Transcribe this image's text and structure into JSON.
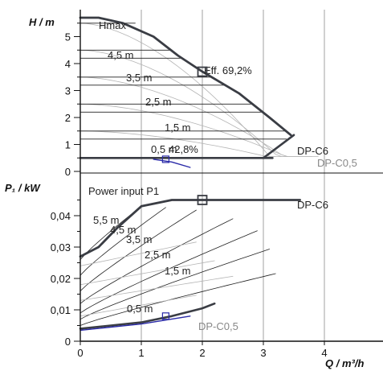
{
  "chart_data": [
    {
      "type": "line",
      "title": "",
      "xlabel": "Q / m³/h",
      "ylabel": "H / m",
      "xlim": [
        0,
        4.8
      ],
      "ylim": [
        0,
        6.2
      ],
      "xticks": [
        "0",
        "1",
        "2",
        "3",
        "4"
      ],
      "yticks": [
        "0",
        "1",
        "2",
        "3",
        "4",
        "5"
      ],
      "grid": "vertical",
      "series": [
        {
          "name": "DP-C6",
          "x": [
            0,
            0.3,
            0.7,
            1.2,
            1.6,
            2.0,
            2.6,
            3.1,
            3.45
          ],
          "y": [
            5.7,
            5.7,
            5.5,
            5.0,
            4.3,
            3.7,
            2.9,
            2.0,
            1.35
          ]
        },
        {
          "name": "DP-C0,5",
          "x": [
            0,
            1.0,
            2.0,
            3.0,
            3.15
          ],
          "y": [
            0.5,
            0.5,
            0.5,
            0.5,
            0.5
          ]
        },
        {
          "name": "",
          "x": [
            3.0,
            3.5
          ],
          "y": [
            0.5,
            1.35
          ]
        }
      ],
      "level_lines_m": [
        5.5,
        4.5,
        4.2,
        3.5,
        3.2,
        2.5,
        2.2,
        1.5,
        1.2,
        0.5
      ],
      "level_labels": [
        "Hmax",
        "4,5 m",
        "3,5 m",
        "2,5 m",
        "1,5 m",
        "0,5 m"
      ],
      "annotations": [
        "Eff. 69,2%",
        "42,8%",
        "DP-C6",
        "DP-C0,5"
      ],
      "markers": [
        {
          "x": 2.0,
          "y": 3.7
        },
        {
          "x": 1.4,
          "y": 0.45
        }
      ]
    },
    {
      "type": "line",
      "title": "",
      "xlabel": "Q / m³/h",
      "ylabel": "P₁ / kW",
      "xlim": [
        0,
        4.8
      ],
      "ylim": [
        0,
        0.048
      ],
      "xticks": [
        "0",
        "1",
        "2",
        "3",
        "4"
      ],
      "yticks": [
        "0",
        "0,01",
        "0,02",
        "0,03",
        "0,04"
      ],
      "grid": "vertical",
      "series": [
        {
          "name": "DP-C6",
          "x": [
            0,
            0.3,
            0.6,
            1.0,
            1.5,
            2.0,
            2.5,
            3.0,
            3.6
          ],
          "y": [
            0.027,
            0.03,
            0.036,
            0.043,
            0.045,
            0.045,
            0.045,
            0.045,
            0.045
          ]
        },
        {
          "name": "DP-C0,5",
          "x": [
            0,
            0.5,
            1.0,
            1.5,
            2.0,
            2.2
          ],
          "y": [
            0.004,
            0.005,
            0.006,
            0.008,
            0.0105,
            0.012
          ]
        }
      ],
      "level_labels": [
        "Power input P1",
        "5,5 m",
        "4,5 m",
        "3,5 m",
        "2,5 m",
        "1,5 m",
        "0,5 m"
      ],
      "annotations": [
        "DP-C6",
        "DP-C0,5"
      ],
      "markers": [
        {
          "x": 2.0,
          "y": 0.045
        },
        {
          "x": 1.4,
          "y": 0.008
        }
      ]
    }
  ],
  "text": {
    "top_ylabel": "H / m",
    "top_hmax": "Hmax",
    "top_lvl45": "4,5 m",
    "top_lvl35": "3,5 m",
    "top_lvl25": "2,5 m",
    "top_lvl15": "1,5 m",
    "top_lvl05": "0,5 m",
    "top_eff": "Eff. 69,2%",
    "top_eff2": "42,8%",
    "top_dpc6": "DP-C6",
    "top_dpc05": "DP-C0,5",
    "bot_ylabel": "P₁ / kW",
    "bot_power": "Power input P1",
    "bot_lvl55": "5,5 m",
    "bot_lvl45": "4,5 m",
    "bot_lvl35": "3,5 m",
    "bot_lvl25": "2,5 m",
    "bot_lvl15": "1,5 m",
    "bot_lvl05": "0,5 m",
    "bot_dpc6": "DP-C6",
    "bot_dpc05": "DP-C0,5",
    "xlabel": "Q / m³/h",
    "top_yticks": [
      "0",
      "1",
      "2",
      "3",
      "4",
      "5"
    ],
    "bot_yticks": [
      "0",
      "0,01",
      "0,02",
      "0,03",
      "0,04"
    ],
    "xticks": [
      "0",
      "1",
      "2",
      "3",
      "4"
    ]
  },
  "colors": {
    "axis": "#111111",
    "main_curve": "#3a3d44",
    "grey_curve": "#b5b5b5",
    "thin_curve": "#222222",
    "low_curve": "#2a2aa8",
    "grid": "#8a8a8a"
  }
}
